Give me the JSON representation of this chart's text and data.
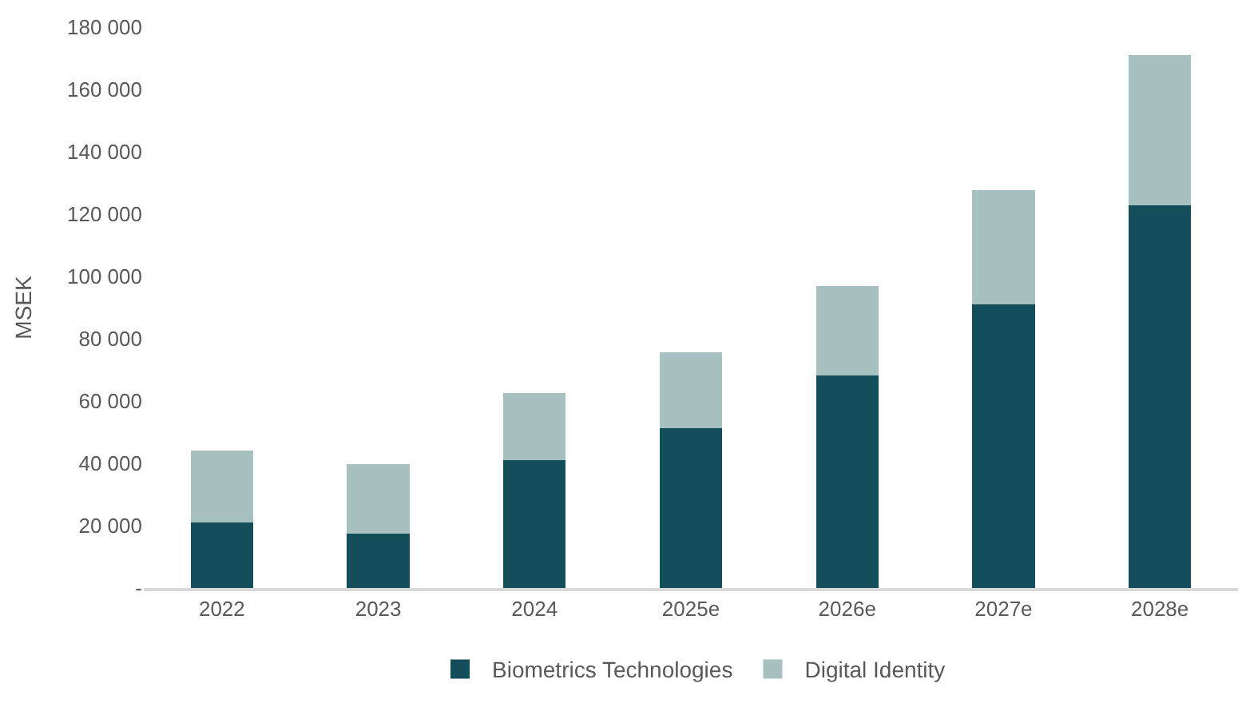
{
  "chart_data": {
    "type": "bar",
    "stacked": true,
    "ylabel": "MSEK",
    "categories": [
      "2022",
      "2023",
      "2024",
      "2025e",
      "2026e",
      "2027e",
      "2028e"
    ],
    "series": [
      {
        "name": "Biometrics Technologies",
        "color": "#134e5a",
        "values": [
          21000,
          17500,
          41000,
          51300,
          68300,
          91000,
          122800
        ]
      },
      {
        "name": "Digital Identity",
        "color": "#a7c1c0",
        "values": [
          23000,
          22200,
          21500,
          24400,
          28600,
          36600,
          48200
        ]
      }
    ],
    "ylim": [
      0,
      180000
    ],
    "yticks": [
      {
        "value": 0,
        "label": "-"
      },
      {
        "value": 20000,
        "label": "20 000"
      },
      {
        "value": 40000,
        "label": "40 000"
      },
      {
        "value": 60000,
        "label": "60 000"
      },
      {
        "value": 80000,
        "label": "80 000"
      },
      {
        "value": 100000,
        "label": "100 000"
      },
      {
        "value": 120000,
        "label": "120 000"
      },
      {
        "value": 140000,
        "label": "140 000"
      },
      {
        "value": 160000,
        "label": "160 000"
      },
      {
        "value": 180000,
        "label": "180 000"
      }
    ],
    "grid": false,
    "legend": "bottom"
  }
}
